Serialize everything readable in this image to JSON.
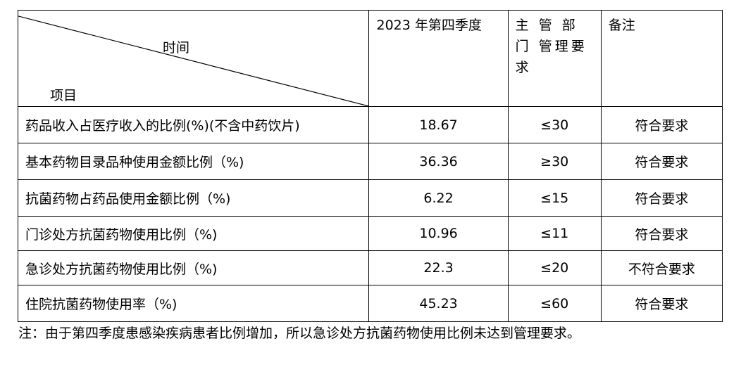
{
  "table": {
    "header": {
      "diagonal_top": "时间",
      "diagonal_bottom": "项目",
      "period": "2023 年第四季度",
      "requirement": "主 管 部 门 管理要求",
      "note": "备注"
    },
    "rows": [
      {
        "item": "药品收入占医疗收入的比例(%)(不含中药饮片)",
        "value": "18.67",
        "requirement": "≤30",
        "note": "符合要求"
      },
      {
        "item": "基本药物目录品种使用金额比例（%)",
        "value": "36.36",
        "requirement": "≥30",
        "note": "符合要求"
      },
      {
        "item": "抗菌药物占药品使用金额比例（%)",
        "value": "6.22",
        "requirement": "≤15",
        "note": "符合要求"
      },
      {
        "item": "门诊处方抗菌药物使用比例（%)",
        "value": "10.96",
        "requirement": "≤11",
        "note": "符合要求"
      },
      {
        "item": "急诊处方抗菌药物使用比例（%)",
        "value": "22.3",
        "requirement": "≤20",
        "note": "不符合要求"
      },
      {
        "item": "住院抗菌药物使用率（%)",
        "value": "45.23",
        "requirement": "≤60",
        "note": "符合要求"
      }
    ]
  },
  "footnote": "注：由于第四季度患感染疾病患者比例增加，所以急诊处方抗菌药物使用比例未达到管理要求。"
}
